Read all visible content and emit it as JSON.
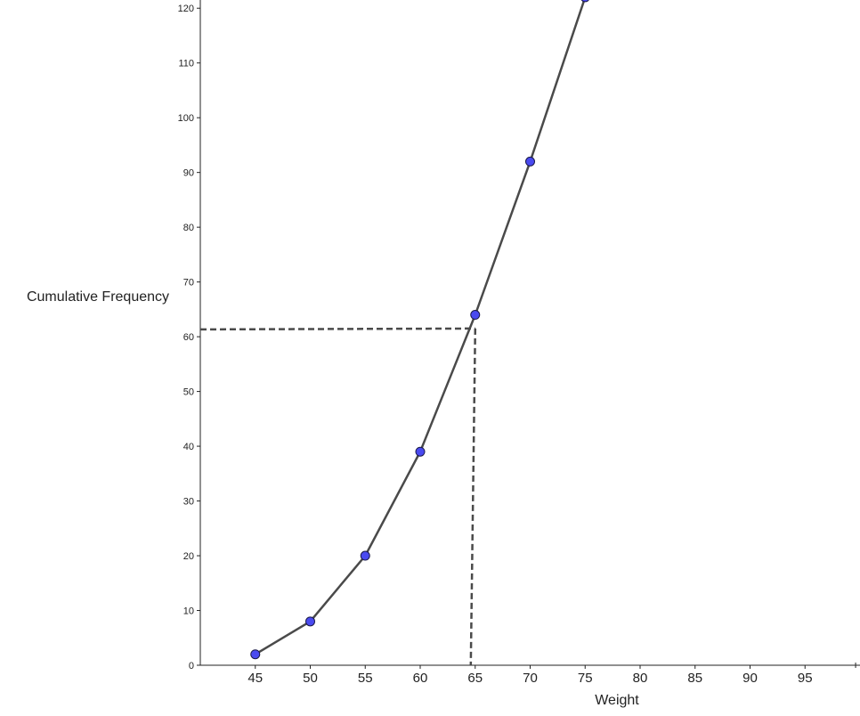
{
  "chart_data": {
    "type": "line",
    "title": "",
    "xlabel": "Weight",
    "ylabel": "Cumulative Frequency",
    "xlim": [
      40,
      100
    ],
    "ylim": [
      0,
      121.5
    ],
    "x_ticks": [
      "45",
      "50",
      "55",
      "60",
      "65",
      "70",
      "75",
      "80",
      "85",
      "90",
      "95"
    ],
    "y_ticks": [
      "0",
      "10",
      "20",
      "30",
      "40",
      "50",
      "60",
      "70",
      "80",
      "90",
      "100",
      "110",
      "120"
    ],
    "grid": false,
    "series": [
      {
        "x": [
          45,
          50,
          55,
          60,
          65,
          70,
          75
        ],
        "y": [
          2,
          8,
          20,
          39,
          64,
          92,
          122
        ],
        "line_color": "#4a4a4a",
        "marker_color": "#4a4af0"
      }
    ],
    "reference_lines": [
      {
        "x": 64.6,
        "y": 61.5,
        "style": "dashed",
        "color": "#4a4a4a"
      }
    ]
  }
}
